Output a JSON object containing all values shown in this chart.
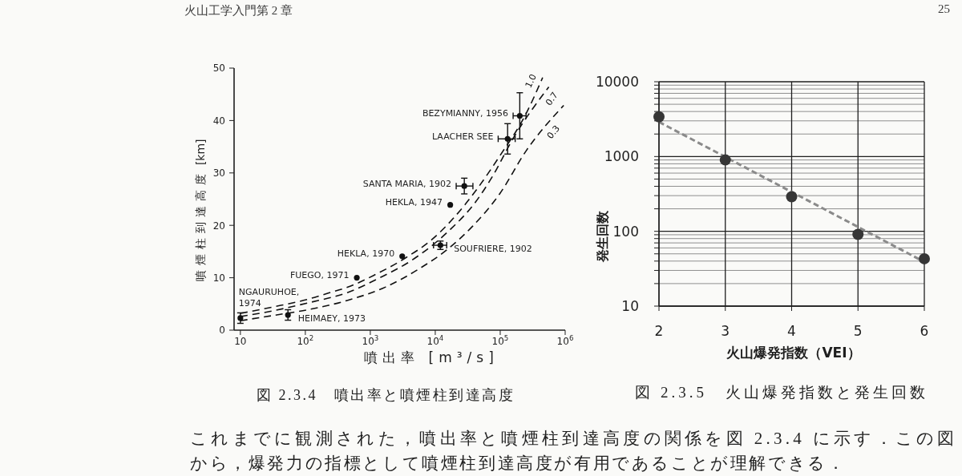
{
  "chart_data": [
    {
      "type": "scatter",
      "xlabel": "噴出率 [m³/s]",
      "ylabel": "噴煙柱到達高度 [km]",
      "x": [
        10,
        54,
        620,
        3100,
        12000,
        17000,
        28000,
        130000,
        200000
      ],
      "series": [
        {
          "color": "#111111",
          "marker": "circle",
          "values": [
            2.3,
            2.9,
            10.0,
            14.1,
            16.2,
            23.9,
            27.5,
            36.5,
            40.9
          ],
          "errors": [
            1,
            1,
            null,
            null,
            0.8,
            null,
            1.5,
            2.9,
            4.4
          ],
          "xerrors": [
            null,
            null,
            null,
            null,
            [
              9400,
              15000
            ],
            null,
            [
              21000,
              38000
            ],
            [
              93000,
              170000
            ],
            [
              158000,
              250000
            ]
          ]
        },
        {
          "type": "line",
          "name": "1.0",
          "color": "#111111",
          "marker": "none",
          "line_style": "dashed",
          "x": [
            10,
            31,
            110,
            230,
            450,
            1150,
            3500,
            9100,
            19500,
            42000,
            98000,
            250000,
            450000
          ],
          "values": [
            3.2,
            4.4,
            5.9,
            7.1,
            8.2,
            10.5,
            13.8,
            17.4,
            21.5,
            26.6,
            33.2,
            41.3,
            48.2
          ]
        },
        {
          "type": "line",
          "name": "0.7",
          "color": "#111111",
          "marker": "none",
          "line_style": "dashed",
          "x": [
            10,
            32,
            110,
            450,
            1400,
            4300,
            16000,
            42000,
            74000,
            160000,
            560000
          ],
          "values": [
            2.6,
            3.7,
            5.2,
            7.2,
            10.0,
            13.3,
            18.9,
            24.5,
            29.1,
            36.7,
            46.4
          ]
        },
        {
          "type": "line",
          "name": "0.3",
          "color": "#111111",
          "marker": "none",
          "line_style": "dashed",
          "x": [
            10,
            32,
            110,
            450,
            1700,
            5800,
            15000,
            38000,
            98000,
            250000,
            950000
          ],
          "values": [
            1.8,
            2.8,
            3.9,
            5.7,
            8.2,
            11.8,
            15.3,
            19.9,
            26.0,
            34.2,
            42.9
          ]
        }
      ],
      "xlim": [
        8,
        1000000
      ],
      "xticks": [
        10,
        {
          "value": 100,
          "label": "10$^{2}$"
        },
        {
          "value": 1000,
          "label": "10$^{3}$"
        },
        {
          "value": 10000,
          "label": "10$^{4}$"
        },
        {
          "value": 100000,
          "label": "10$^{5}$"
        },
        {
          "value": 1000000,
          "label": "10$^{6}$"
        }
      ],
      "ylim": [
        0,
        50
      ],
      "yticks": [
        0,
        10,
        20,
        30,
        40,
        50
      ],
      "log": "x",
      "annotations": [
        "火山工学入門第 2 章",
        "図 2.3.4　噴出率と噴煙柱到達高度",
        "これまでに観測された，噴出率と噴煙柱到達高度の関係を図 2.3.4 に示す．この図",
        "から，爆発力の指標として噴煙柱到達高度が有用であることが理解できる．",
        {
          "text": "NGAURUHOE, 1974",
          "x": 10,
          "y": 2.3
        },
        {
          "text": "HEIMAEY, 1973",
          "x": 54,
          "y": 2.9
        },
        {
          "text": "FUEGO, 1971",
          "x": 620,
          "y": 10.0
        },
        {
          "text": "HEKLA, 1970",
          "x": 3100,
          "y": 14.1
        },
        {
          "text": "SOUFRIERE, 1902",
          "x": 12000,
          "y": 16.2
        },
        {
          "text": "HEKLA, 1947",
          "x": 17000,
          "y": 23.9
        },
        {
          "text": "SANTA MARIA, 1902",
          "x": 28000,
          "y": 27.5
        },
        {
          "text": "LAACHER SEE",
          "x": 130000,
          "y": 36.5
        },
        {
          "text": "BEZYMIANNY, 1956",
          "x": 200000,
          "y": 40.9
        }
      ]
    },
    {
      "type": "scatter",
      "xlabel": "火山爆発指数（VEI）",
      "ylabel": "発生回数",
      "x": [
        2,
        3,
        4,
        5,
        6
      ],
      "series": [
        {
          "color": "#363636",
          "marker": "circle",
          "values": [
            3400,
            900,
            290,
            91,
            43
          ]
        },
        {
          "type": "line",
          "color": "#8a8a8a",
          "marker": "none",
          "line_style": "dashed",
          "x": [
            2,
            6
          ],
          "values": [
            2900,
            39
          ]
        }
      ],
      "xlim": [
        2,
        6
      ],
      "xticks": [
        2,
        3,
        4,
        5,
        6
      ],
      "ylim": [
        10,
        10000
      ],
      "yticks": [
        10,
        {
          "value": 20,
          "label": null
        },
        {
          "value": 30,
          "label": null
        },
        {
          "value": 40,
          "label": null
        },
        {
          "value": 50,
          "label": null
        },
        {
          "value": 60,
          "label": null
        },
        {
          "value": 70,
          "label": null
        },
        {
          "value": 80,
          "label": null
        },
        {
          "value": 90,
          "label": null
        },
        100,
        {
          "value": 200,
          "label": null
        },
        {
          "value": 300,
          "label": null
        },
        {
          "value": 400,
          "label": null
        },
        {
          "value": 500,
          "label": null
        },
        {
          "value": 600,
          "label": null
        },
        {
          "value": 700,
          "label": null
        },
        {
          "value": 800,
          "label": null
        },
        {
          "value": 900,
          "label": null
        },
        1000,
        {
          "value": 2000,
          "label": null
        },
        {
          "value": 3000,
          "label": null
        },
        {
          "value": 4000,
          "label": null
        },
        {
          "value": 5000,
          "label": null
        },
        {
          "value": 6000,
          "label": null
        },
        {
          "value": 7000,
          "label": null
        },
        {
          "value": 8000,
          "label": null
        },
        {
          "value": 9000,
          "label": null
        },
        10000
      ],
      "log": "y",
      "grid": true,
      "annotations": [
        "図 2.3.5　火山爆発指数と発生回数",
        "25"
      ]
    }
  ]
}
